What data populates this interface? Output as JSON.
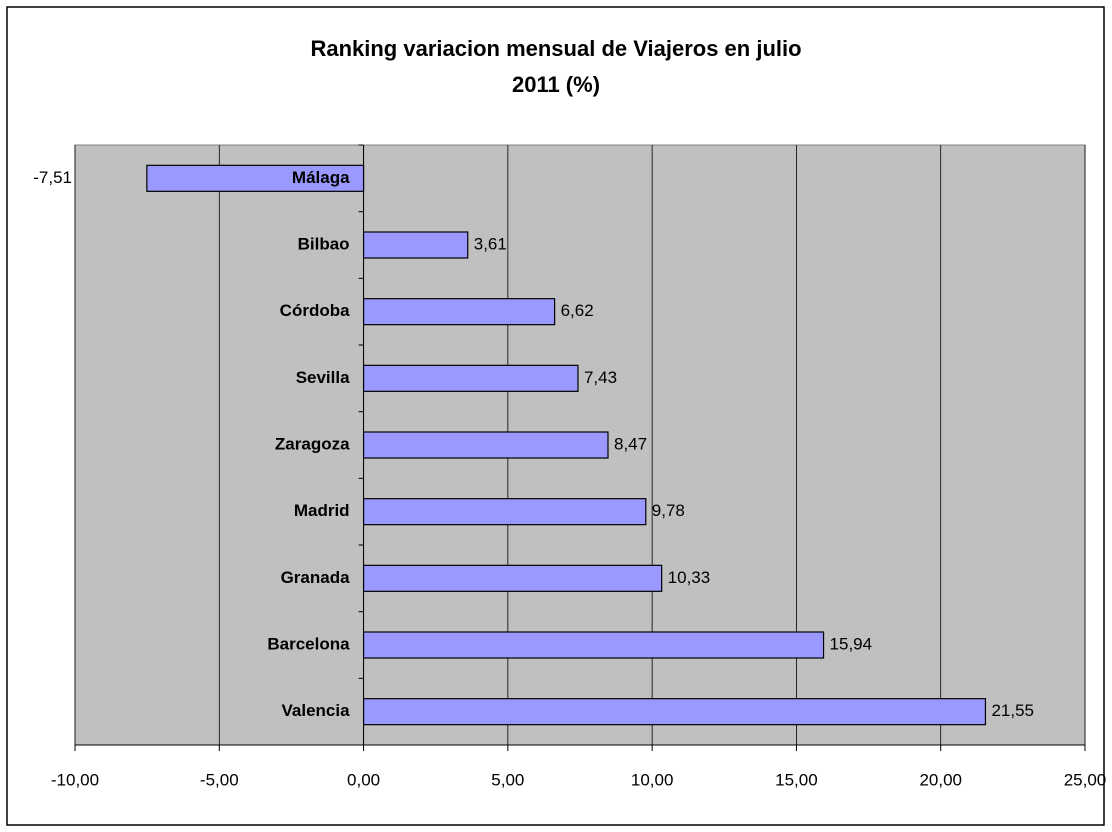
{
  "chart_data": {
    "type": "bar",
    "orientation": "horizontal",
    "title": "Ranking variacion mensual de Viajeros en julio 2011 (%)",
    "categories": [
      "Málaga",
      "Bilbao",
      "Córdoba",
      "Sevilla",
      "Zaragoza",
      "Madrid",
      "Granada",
      "Barcelona",
      "Valencia"
    ],
    "values": [
      -7.51,
      3.61,
      6.62,
      7.43,
      8.47,
      9.78,
      10.33,
      15.94,
      21.55
    ],
    "value_labels": [
      "-7,51",
      "3,61",
      "6,62",
      "7,43",
      "8,47",
      "9,78",
      "10,33",
      "15,94",
      "21,55"
    ],
    "color": "#9999ff",
    "xlim": [
      -10,
      25
    ],
    "xticks": [
      {
        "value": -10,
        "label": "-10,00"
      },
      {
        "value": -5,
        "label": "-5,00"
      },
      {
        "value": 0,
        "label": "0,00"
      },
      {
        "value": 5,
        "label": "5,00"
      },
      {
        "value": 10,
        "label": "10,00"
      },
      {
        "value": 15,
        "label": "15,00"
      },
      {
        "value": 20,
        "label": "20,00"
      },
      {
        "value": 25,
        "label": "25,00"
      }
    ],
    "grid": true
  }
}
